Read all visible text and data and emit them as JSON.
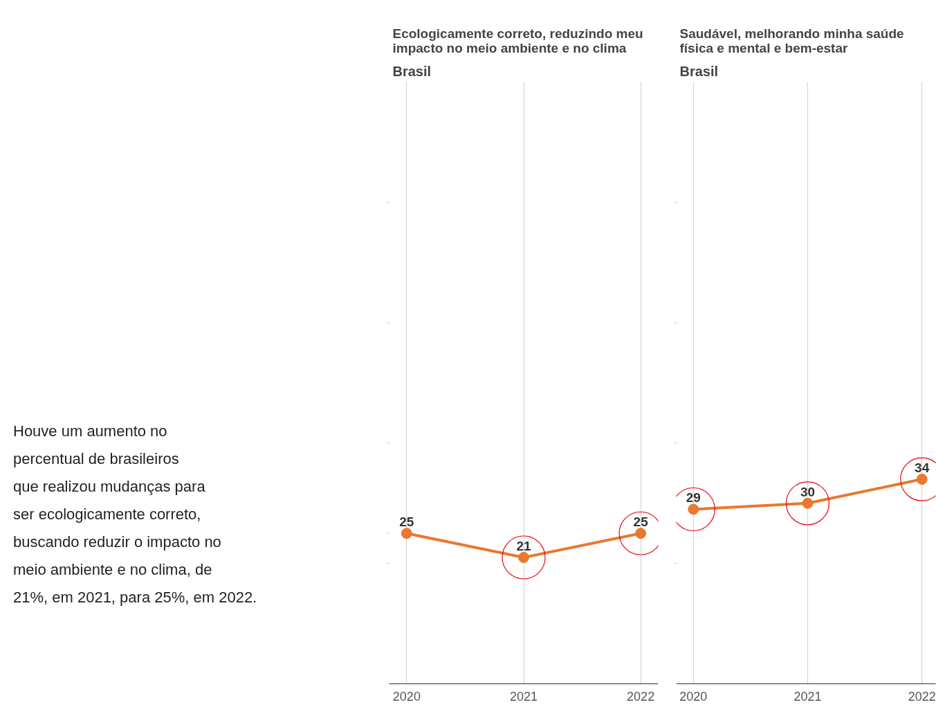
{
  "chart_data": [
    {
      "type": "line",
      "title": "Ecologicamente correto, reduzindo meu\nimpacto no meio ambiente e no clima",
      "subtitle": "Brasil",
      "x": [
        2020,
        2021,
        2022
      ],
      "xlim": [
        2019.85,
        2022.15
      ],
      "xticks": [
        2020,
        2021,
        2022
      ],
      "ylim": [
        0,
        100
      ],
      "yticks": [
        {
          "value": 20,
          "label": null
        },
        {
          "value": 40,
          "label": null
        },
        {
          "value": 60,
          "label": null
        },
        {
          "value": 80,
          "label": null
        }
      ],
      "tick_labels": "x",
      "grid": "x",
      "marker": "circle",
      "series": [
        {
          "color": "#e8792f",
          "values": [
            25,
            21,
            25
          ],
          "value_labels": [
            "25",
            "21",
            "25"
          ]
        },
        {
          "type": "scatter",
          "color": "#e30613",
          "values": [
            null,
            21,
            25
          ]
        }
      ],
      "annotations": [
        "Houve um aumento no\npercentual de brasileiros\nque realizou mudanças para\nser ecologicamente correto,\nbuscando reduzir o impacto no\nmeio ambiente e no clima, de\n21%, em 2021, para 25%, em 2022."
      ]
    },
    {
      "type": "line",
      "title": "Saudável, melhorando minha saúde\nfísica e mental e bem-estar",
      "subtitle": "Brasil",
      "x": [
        2020,
        2021,
        2022
      ],
      "xlim": [
        2019.85,
        2022.12
      ],
      "xticks": [
        2020,
        2021,
        2022
      ],
      "ylim": [
        0,
        100
      ],
      "yticks": [
        {
          "value": 20,
          "label": null
        },
        {
          "value": 40,
          "label": null
        },
        {
          "value": 60,
          "label": null
        },
        {
          "value": 80,
          "label": null
        }
      ],
      "tick_labels": "x",
      "grid": "x",
      "marker": "circle",
      "series": [
        {
          "color": "#e8792f",
          "values": [
            29,
            30,
            34
          ],
          "value_labels": [
            "29",
            "30",
            "34"
          ]
        },
        {
          "type": "scatter",
          "color": "#e30613",
          "values": [
            29,
            30,
            34
          ]
        }
      ]
    }
  ]
}
